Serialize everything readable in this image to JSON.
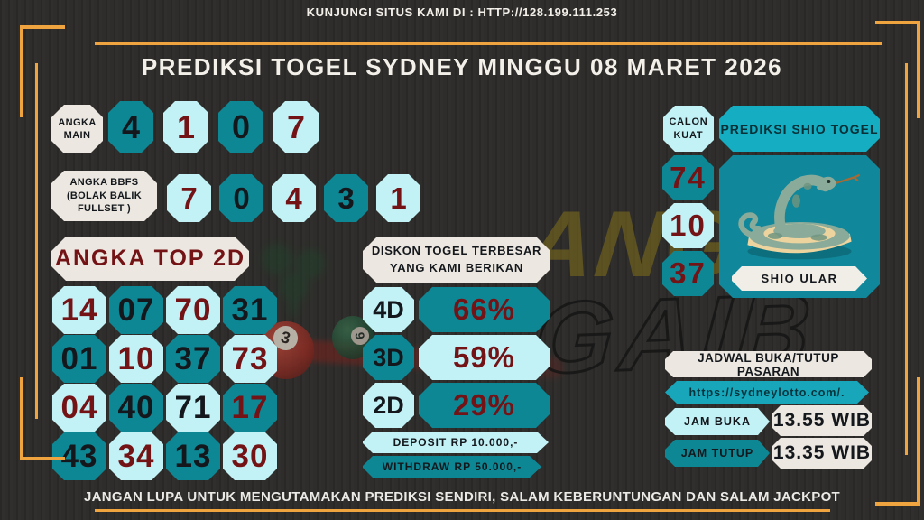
{
  "header": {
    "site_line": "KUNJUNGI SITUS KAMI DI : HTTP://128.199.111.253",
    "title": "PREDIKSI TOGEL SYDNEY MINGGU 08 MARET 2026"
  },
  "angka_main": {
    "label_lines": [
      "ANGKA",
      "MAIN"
    ],
    "cells": [
      {
        "v": "4",
        "bg": "teal",
        "fg": "ink"
      },
      {
        "v": "1",
        "bg": "cyan",
        "fg": "maroon"
      },
      {
        "v": "0",
        "bg": "teal",
        "fg": "ink"
      },
      {
        "v": "7",
        "bg": "cyan",
        "fg": "maroon"
      }
    ]
  },
  "angka_bbfs": {
    "label_lines": [
      "ANGKA BBFS",
      "(BOLAK BALIK",
      "FULLSET )"
    ],
    "cells": [
      {
        "v": "7",
        "bg": "cyan",
        "fg": "maroon"
      },
      {
        "v": "0",
        "bg": "teal",
        "fg": "ink"
      },
      {
        "v": "4",
        "bg": "cyan",
        "fg": "maroon"
      },
      {
        "v": "3",
        "bg": "teal",
        "fg": "ink"
      },
      {
        "v": "1",
        "bg": "cyan",
        "fg": "maroon"
      }
    ]
  },
  "top2d": {
    "title": "ANGKA TOP 2D",
    "cells": [
      {
        "v": "14",
        "bg": "cyan",
        "fg": "maroon"
      },
      {
        "v": "07",
        "bg": "teal",
        "fg": "ink"
      },
      {
        "v": "70",
        "bg": "cyan",
        "fg": "maroon"
      },
      {
        "v": "31",
        "bg": "teal",
        "fg": "ink"
      },
      {
        "v": "01",
        "bg": "teal",
        "fg": "ink"
      },
      {
        "v": "10",
        "bg": "cyan",
        "fg": "maroon"
      },
      {
        "v": "37",
        "bg": "teal",
        "fg": "ink"
      },
      {
        "v": "73",
        "bg": "cyan",
        "fg": "maroon"
      },
      {
        "v": "04",
        "bg": "cyan",
        "fg": "maroon"
      },
      {
        "v": "40",
        "bg": "teal",
        "fg": "ink"
      },
      {
        "v": "71",
        "bg": "cyan",
        "fg": "ink"
      },
      {
        "v": "17",
        "bg": "teal",
        "fg": "maroon"
      },
      {
        "v": "43",
        "bg": "teal",
        "fg": "ink"
      },
      {
        "v": "34",
        "bg": "cyan",
        "fg": "maroon"
      },
      {
        "v": "13",
        "bg": "teal",
        "fg": "ink"
      },
      {
        "v": "30",
        "bg": "cyan",
        "fg": "maroon"
      }
    ]
  },
  "diskon": {
    "title_lines": [
      "DISKON TOGEL TERBESAR",
      "YANG KAMI BERIKAN"
    ],
    "rows": [
      {
        "label": "4D",
        "value": "66%"
      },
      {
        "label": "3D",
        "value": "59%"
      },
      {
        "label": "2D",
        "value": "29%"
      }
    ],
    "deposit": "DEPOSIT RP 10.000,-",
    "withdraw": "WITHDRAW RP 50.000,-"
  },
  "calon_kuat": {
    "label_lines": [
      "CALON",
      "KUAT"
    ],
    "cells": [
      {
        "v": "74",
        "bg": "teal",
        "fg": "maroon"
      },
      {
        "v": "10",
        "bg": "cyan",
        "fg": "maroon"
      },
      {
        "v": "37",
        "bg": "teal",
        "fg": "maroon"
      }
    ]
  },
  "shio": {
    "header": "PREDIKSI SHIO TOGEL",
    "name": "SHIO ULAR",
    "icon": "snake-icon"
  },
  "jadwal": {
    "title": "JADWAL BUKA/TUTUP PASARAN",
    "url": "https://sydneylotto.com/.",
    "rows": [
      {
        "label": "JAM BUKA",
        "value": "13.55 WIB"
      },
      {
        "label": "JAM TUTUP",
        "value": "13.35 WIB"
      }
    ]
  },
  "footer": {
    "text": "JANGAN LUPA UNTUK MENGUTAMAKAN PREDIKSI SENDIRI, SALAM KEBERUNTUNGAN DAN SALAM JACKPOT"
  },
  "watermark": {
    "line1": "ANGKA",
    "line2": "GAIB"
  },
  "decor": {
    "red_ball_number": "3",
    "green_ball_number": "9"
  },
  "colors": {
    "background": "#2e2d2b",
    "gold": "#f0a440",
    "teal": "#0e8795",
    "teal_bright": "#15adc2",
    "cyan": "#c2f1f6",
    "paper": "#ece7e0",
    "maroon": "#731316",
    "ink": "#14181c"
  }
}
